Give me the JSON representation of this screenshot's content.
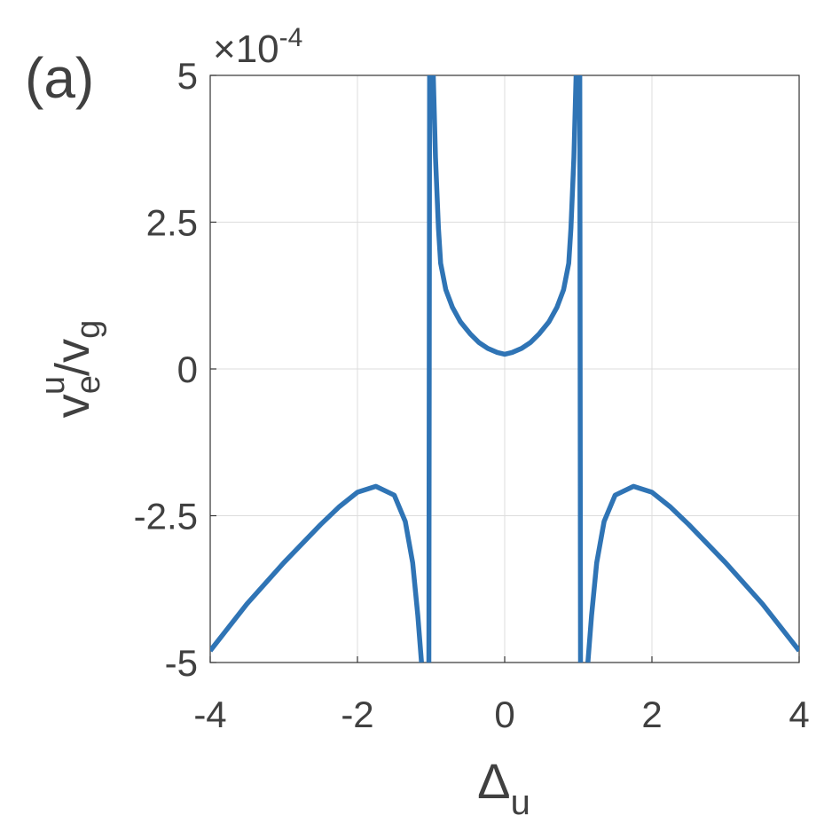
{
  "chart_data": {
    "type": "line",
    "panel_label": "(a)",
    "exponent": {
      "base": "×10",
      "power": "-4"
    },
    "xlabel": [
      "Δ",
      "u"
    ],
    "ylabel": [
      "v",
      "e",
      "u",
      "/v",
      "g"
    ],
    "x": [
      -4,
      -3.5,
      -3,
      -2.5,
      -2.25,
      -2,
      -1.75,
      -1.5,
      -1.35,
      -1.25,
      -1.18,
      -1.13,
      null,
      -1.03,
      -1.02,
      null,
      -0.97,
      -0.94,
      -0.9,
      -0.87,
      -0.8,
      -0.71,
      -0.6,
      -0.47,
      -0.35,
      -0.23,
      -0.1,
      0,
      0.1,
      0.23,
      0.35,
      0.47,
      0.6,
      0.71,
      0.8,
      0.87,
      0.9,
      0.94,
      0.97,
      null,
      1.02,
      1.03,
      null,
      1.13,
      1.18,
      1.25,
      1.35,
      1.5,
      1.75,
      2,
      2.25,
      2.5,
      3,
      3.5,
      4
    ],
    "series": [
      {
        "color": "#2f74b5",
        "values": [
          -4.8,
          -4.0,
          -3.3,
          -2.65,
          -2.35,
          -2.1,
          -2.0,
          -2.15,
          -2.6,
          -3.3,
          -4.2,
          -5,
          null,
          -5,
          5,
          null,
          5,
          3.6,
          2.4,
          1.8,
          1.35,
          1.05,
          0.8,
          0.6,
          0.45,
          0.35,
          0.28,
          0.25,
          0.28,
          0.35,
          0.45,
          0.6,
          0.8,
          1.05,
          1.35,
          1.8,
          2.4,
          3.6,
          5,
          null,
          5,
          -5,
          null,
          -5,
          -4.2,
          -3.3,
          -2.6,
          -2.15,
          -2.0,
          -2.1,
          -2.35,
          -2.65,
          -3.3,
          -4.0,
          -4.8
        ]
      }
    ],
    "xlim": [
      -4,
      4
    ],
    "ylim": [
      -5,
      5
    ],
    "xticks": [
      -4,
      -2,
      0,
      2,
      4
    ],
    "yticks": [
      -5,
      -2.5,
      0,
      2.5,
      5
    ],
    "grid": true
  }
}
